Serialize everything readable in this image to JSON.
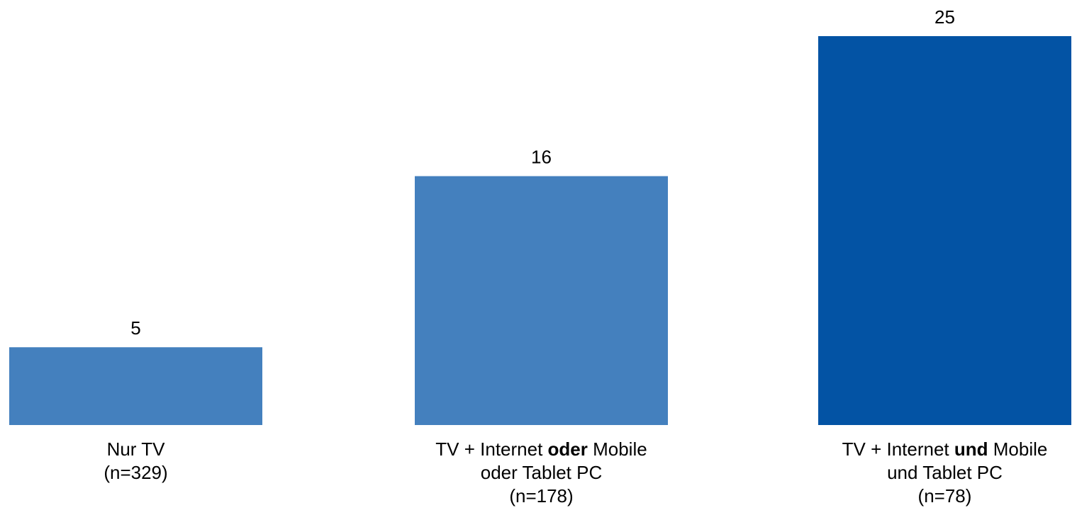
{
  "chart_data": {
    "type": "bar",
    "title": "",
    "xlabel": "",
    "ylabel": "",
    "ylim": [
      0,
      25
    ],
    "grid": false,
    "categories": [
      {
        "line1": [
          {
            "text": "Nur TV",
            "bold": false
          }
        ],
        "line2": [],
        "line3": "(n=329)"
      },
      {
        "line1": [
          {
            "text": "TV + Internet ",
            "bold": false
          },
          {
            "text": "oder",
            "bold": true
          },
          {
            "text": " Mobile",
            "bold": false
          }
        ],
        "line2": [
          {
            "text": "oder Tablet PC",
            "bold": false
          }
        ],
        "line3": "(n=178)"
      },
      {
        "line1": [
          {
            "text": "TV + Internet ",
            "bold": false
          },
          {
            "text": "und",
            "bold": true
          },
          {
            "text": " Mobile",
            "bold": false
          }
        ],
        "line2": [
          {
            "text": "und Tablet PC",
            "bold": false
          }
        ],
        "line3": "(n=78)"
      }
    ],
    "values": [
      5,
      16,
      25
    ],
    "data_labels": [
      "5",
      "16",
      "25"
    ],
    "colors": [
      "#4480BE",
      "#4480BE",
      "#0353A4"
    ]
  }
}
